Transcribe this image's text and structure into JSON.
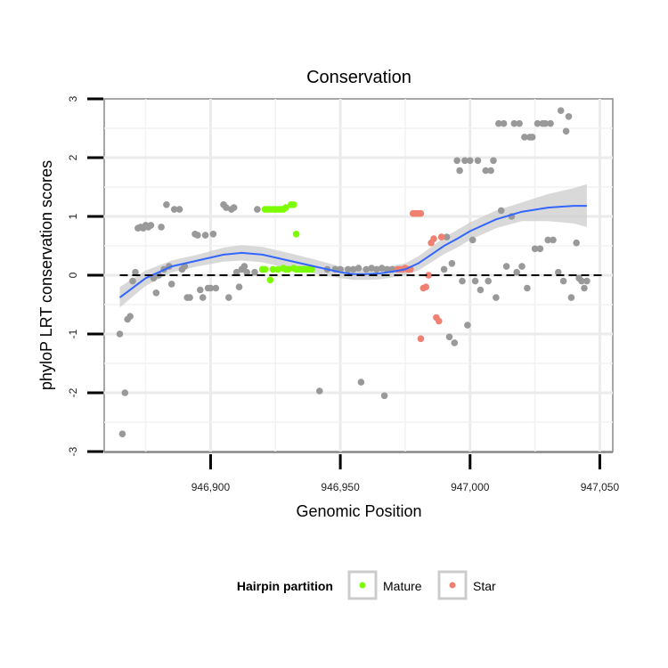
{
  "chart_data": {
    "type": "scatter",
    "title": "Conservation",
    "xlabel": "Genomic Position",
    "ylabel": "phyloP LRT conservation scores",
    "xlim": [
      946859,
      947055
    ],
    "ylim": [
      -3,
      3
    ],
    "x_ticks": [
      946900,
      946950,
      947000,
      947050
    ],
    "x_tick_labels": [
      "946,900",
      "946,950",
      "947,000",
      "947,050"
    ],
    "y_ticks": [
      -3,
      -2,
      -1,
      0,
      1,
      2,
      3
    ],
    "y_tick_labels": [
      "-3",
      "-2",
      "-1",
      "0",
      "1",
      "2",
      "3"
    ],
    "reference_line": {
      "y": 0,
      "style": "dashed"
    },
    "colors": {
      "other": "#999999",
      "Mature": "#7cfc00",
      "Star": "#f08070",
      "smooth": "#3366ff",
      "band": "#cccccc"
    },
    "legend": {
      "title": "Hairpin partition",
      "entries": [
        {
          "label": "Mature",
          "color": "#7cfc00"
        },
        {
          "label": "Star",
          "color": "#f08070"
        }
      ]
    },
    "series": [
      {
        "name": "Other",
        "color": "#999999",
        "points": [
          [
            946865,
            -1.0
          ],
          [
            946866,
            -2.7
          ],
          [
            946867,
            -2.0
          ],
          [
            946868,
            -0.75
          ],
          [
            946869,
            -0.7
          ],
          [
            946870,
            -0.1
          ],
          [
            946871,
            0.05
          ],
          [
            946872,
            0.8
          ],
          [
            946873,
            0.82
          ],
          [
            946874,
            0.8
          ],
          [
            946875,
            0.85
          ],
          [
            946876,
            0.82
          ],
          [
            946877,
            0.85
          ],
          [
            946878,
            -0.05
          ],
          [
            946879,
            -0.3
          ],
          [
            946880,
            0.0
          ],
          [
            946881,
            0.82
          ],
          [
            946882,
            0.1
          ],
          [
            946883,
            1.2
          ],
          [
            946884,
            0.15
          ],
          [
            946885,
            -0.15
          ],
          [
            946886,
            1.12
          ],
          [
            946888,
            1.12
          ],
          [
            946889,
            0.1
          ],
          [
            946890,
            0.15
          ],
          [
            946891,
            -0.38
          ],
          [
            946892,
            -0.38
          ],
          [
            946894,
            0.7
          ],
          [
            946895,
            0.68
          ],
          [
            946896,
            -0.25
          ],
          [
            946897,
            -0.38
          ],
          [
            946898,
            0.68
          ],
          [
            946899,
            -0.22
          ],
          [
            946900,
            -0.22
          ],
          [
            946901,
            0.7
          ],
          [
            946902,
            -0.22
          ],
          [
            946905,
            1.2
          ],
          [
            946906,
            1.15
          ],
          [
            946907,
            -0.38
          ],
          [
            946908,
            1.12
          ],
          [
            946909,
            1.15
          ],
          [
            946910,
            0.05
          ],
          [
            946911,
            -0.2
          ],
          [
            946912,
            0.1
          ],
          [
            946913,
            0.15
          ],
          [
            946914,
            0.05
          ],
          [
            946917,
            0.05
          ],
          [
            946918,
            1.12
          ],
          [
            946920,
            0.1
          ],
          [
            946942,
            -1.97
          ],
          [
            946945,
            0.1
          ],
          [
            946948,
            0.1
          ],
          [
            946950,
            0.1
          ],
          [
            946953,
            0.1
          ],
          [
            946955,
            0.1
          ],
          [
            946957,
            0.12
          ],
          [
            946958,
            -1.82
          ],
          [
            946960,
            0.1
          ],
          [
            946962,
            0.12
          ],
          [
            946964,
            0.1
          ],
          [
            946966,
            0.12
          ],
          [
            946967,
            -2.05
          ],
          [
            946968,
            0.1
          ],
          [
            946970,
            0.1
          ],
          [
            946990,
            0.1
          ],
          [
            946991,
            0.65
          ],
          [
            946992,
            -1.05
          ],
          [
            946993,
            0.2
          ],
          [
            946994,
            -1.15
          ],
          [
            946995,
            1.95
          ],
          [
            946996,
            1.78
          ],
          [
            946997,
            -0.1
          ],
          [
            946998,
            1.95
          ],
          [
            946999,
            -0.85
          ],
          [
            947000,
            1.95
          ],
          [
            947001,
            0.6
          ],
          [
            947002,
            -0.1
          ],
          [
            947003,
            1.95
          ],
          [
            947004,
            -0.25
          ],
          [
            947006,
            1.78
          ],
          [
            947007,
            -0.1
          ],
          [
            947008,
            1.78
          ],
          [
            947009,
            1.95
          ],
          [
            947010,
            -0.38
          ],
          [
            947011,
            2.58
          ],
          [
            947012,
            1.1
          ],
          [
            947013,
            2.58
          ],
          [
            947014,
            0.15
          ],
          [
            947016,
            1.0
          ],
          [
            947017,
            2.58
          ],
          [
            947018,
            0.05
          ],
          [
            947019,
            2.58
          ],
          [
            947020,
            0.15
          ],
          [
            947021,
            2.35
          ],
          [
            947022,
            -0.22
          ],
          [
            947023,
            2.35
          ],
          [
            947024,
            2.35
          ],
          [
            947025,
            0.45
          ],
          [
            947026,
            2.58
          ],
          [
            947027,
            0.45
          ],
          [
            947028,
            2.58
          ],
          [
            947029,
            2.58
          ],
          [
            947030,
            0.6
          ],
          [
            947031,
            2.58
          ],
          [
            947032,
            0.6
          ],
          [
            947034,
            0.05
          ],
          [
            947035,
            2.8
          ],
          [
            947036,
            -0.1
          ],
          [
            947037,
            2.45
          ],
          [
            947038,
            2.7
          ],
          [
            947039,
            -0.38
          ],
          [
            947041,
            0.55
          ],
          [
            947042,
            -0.05
          ],
          [
            947043,
            -0.1
          ],
          [
            947044,
            -0.22
          ],
          [
            947045,
            -0.1
          ]
        ]
      },
      {
        "name": "Mature",
        "color": "#7cfc00",
        "points": [
          [
            946920,
            0.1
          ],
          [
            946921,
            0.1
          ],
          [
            946921,
            1.12
          ],
          [
            946922,
            1.12
          ],
          [
            946923,
            1.12
          ],
          [
            946924,
            1.12
          ],
          [
            946925,
            1.12
          ],
          [
            946926,
            1.12
          ],
          [
            946927,
            1.12
          ],
          [
            946928,
            1.12
          ],
          [
            946929,
            1.15
          ],
          [
            946931,
            1.2
          ],
          [
            946932,
            1.2
          ],
          [
            946923,
            -0.08
          ],
          [
            946924,
            0.1
          ],
          [
            946926,
            0.1
          ],
          [
            946928,
            0.12
          ],
          [
            946929,
            0.1
          ],
          [
            946930,
            0.1
          ],
          [
            946932,
            0.12
          ],
          [
            946933,
            0.1
          ],
          [
            946934,
            0.1
          ],
          [
            946935,
            0.1
          ],
          [
            946936,
            0.1
          ],
          [
            946937,
            0.1
          ],
          [
            946938,
            0.1
          ],
          [
            946939,
            0.1
          ],
          [
            946933,
            0.7
          ]
        ]
      },
      {
        "name": "Star",
        "color": "#f08070",
        "points": [
          [
            946972,
            0.1
          ],
          [
            946973,
            0.1
          ],
          [
            946974,
            0.1
          ],
          [
            946975,
            0.12
          ],
          [
            946976,
            0.1
          ],
          [
            946977,
            0.1
          ],
          [
            946978,
            1.05
          ],
          [
            946979,
            1.05
          ],
          [
            946980,
            1.05
          ],
          [
            946981,
            1.05
          ],
          [
            946981,
            -1.08
          ],
          [
            946982,
            -0.22
          ],
          [
            946983,
            -0.2
          ],
          [
            946984,
            0.0
          ],
          [
            946985,
            0.55
          ],
          [
            946986,
            0.62
          ],
          [
            946987,
            -0.72
          ],
          [
            946988,
            -0.78
          ],
          [
            946989,
            0.65
          ]
        ]
      }
    ],
    "smooth": {
      "method": "loess",
      "x": [
        946865,
        946875,
        946885,
        946895,
        946905,
        946912,
        946920,
        946930,
        946940,
        946950,
        946955,
        946960,
        946965,
        946970,
        946975,
        946980,
        946985,
        946990,
        946995,
        947000,
        947010,
        947020,
        947030,
        947040,
        947045
      ],
      "y": [
        -0.38,
        -0.05,
        0.15,
        0.25,
        0.35,
        0.38,
        0.35,
        0.25,
        0.15,
        0.05,
        0.02,
        0.02,
        0.03,
        0.06,
        0.1,
        0.2,
        0.35,
        0.5,
        0.62,
        0.75,
        0.95,
        1.08,
        1.15,
        1.18,
        1.18
      ],
      "lower": [
        -0.55,
        -0.18,
        0.05,
        0.15,
        0.23,
        0.25,
        0.22,
        0.12,
        0.03,
        -0.05,
        -0.08,
        -0.08,
        -0.07,
        -0.04,
        0.0,
        0.08,
        0.22,
        0.36,
        0.47,
        0.6,
        0.8,
        0.92,
        0.92,
        0.88,
        0.82
      ],
      "upper": [
        -0.2,
        0.08,
        0.25,
        0.35,
        0.47,
        0.51,
        0.48,
        0.38,
        0.27,
        0.15,
        0.12,
        0.12,
        0.13,
        0.16,
        0.2,
        0.32,
        0.48,
        0.64,
        0.77,
        0.9,
        1.1,
        1.24,
        1.38,
        1.48,
        1.55
      ]
    }
  }
}
